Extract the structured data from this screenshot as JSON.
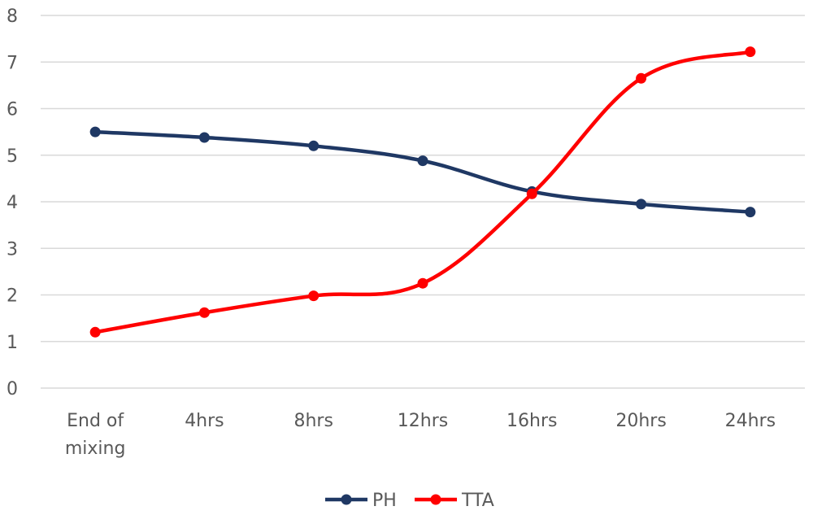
{
  "chart_data": {
    "type": "line",
    "categories": [
      "End of mixing",
      "4hrs",
      "8hrs",
      "12hrs",
      "16hrs",
      "20hrs",
      "24hrs"
    ],
    "category_lines": [
      [
        "End of",
        "mixing"
      ],
      [
        "4hrs"
      ],
      [
        "8hrs"
      ],
      [
        "12hrs"
      ],
      [
        "16hrs"
      ],
      [
        "20hrs"
      ],
      [
        "24hrs"
      ]
    ],
    "series": [
      {
        "name": "PH",
        "color": "#1f3864",
        "values": [
          5.5,
          5.38,
          5.2,
          4.88,
          4.22,
          3.95,
          3.78
        ]
      },
      {
        "name": "TTA",
        "color": "#ff0000",
        "values": [
          1.2,
          1.62,
          1.98,
          2.25,
          4.17,
          6.65,
          7.22
        ]
      }
    ],
    "ylim": [
      0,
      8
    ],
    "yticks": [
      "0",
      "1",
      "2",
      "3",
      "4",
      "5",
      "6",
      "7",
      "8"
    ],
    "title": "",
    "xlabel": "",
    "ylabel": "",
    "grid": true,
    "legend_position": "bottom"
  }
}
